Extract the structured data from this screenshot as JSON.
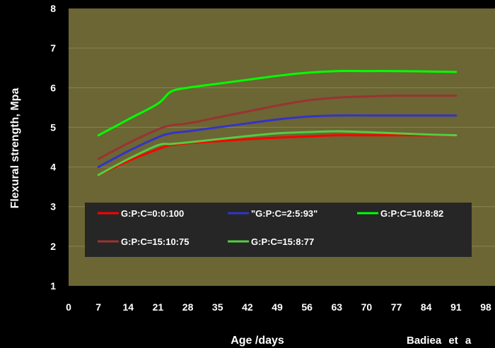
{
  "chart_data": {
    "type": "line",
    "title": "",
    "xlabel": "Age /days",
    "ylabel": "Flexural strength,  Mpa",
    "xlim": [
      0,
      98
    ],
    "ylim": [
      1,
      8
    ],
    "x_ticks": [
      "0",
      "7",
      "14",
      "21",
      "28",
      "35",
      "42",
      "49",
      "56",
      "63",
      "70",
      "77",
      "84",
      "91",
      "98"
    ],
    "y_ticks": [
      "1",
      "2",
      "3",
      "4",
      "5",
      "6",
      "7",
      "8"
    ],
    "grid": "horizontal",
    "legend_position": "bottom-inside",
    "plot_background": "#6b6633",
    "series": [
      {
        "name": "G:P:C=0:0:100",
        "color": "#ff0000",
        "x": [
          7,
          14,
          21,
          24,
          28,
          35,
          42,
          49,
          56,
          63,
          70,
          77,
          84,
          91
        ],
        "y": [
          3.8,
          4.15,
          4.45,
          4.55,
          4.6,
          4.65,
          4.7,
          4.74,
          4.77,
          4.8,
          4.8,
          4.8,
          4.8,
          4.8
        ]
      },
      {
        "name": "\"G:P:C=2:5:93\"",
        "color": "#3333cc",
        "x": [
          7,
          14,
          21,
          24,
          28,
          35,
          42,
          49,
          56,
          63,
          70,
          77,
          84,
          91
        ],
        "y": [
          4.0,
          4.4,
          4.75,
          4.85,
          4.9,
          5.0,
          5.1,
          5.2,
          5.27,
          5.3,
          5.3,
          5.3,
          5.3,
          5.3
        ]
      },
      {
        "name": "G:P:C=10:8:82",
        "color": "#00ff00",
        "x": [
          7,
          14,
          21,
          24,
          28,
          35,
          42,
          49,
          56,
          63,
          70,
          77,
          84,
          91
        ],
        "y": [
          4.8,
          5.2,
          5.6,
          5.9,
          6.0,
          6.1,
          6.2,
          6.3,
          6.38,
          6.42,
          6.42,
          6.42,
          6.41,
          6.4
        ]
      },
      {
        "name": "G:P:C=15:10:75",
        "color": "#993333",
        "x": [
          7,
          14,
          21,
          24,
          28,
          35,
          42,
          49,
          56,
          63,
          70,
          77,
          84,
          91
        ],
        "y": [
          4.2,
          4.6,
          4.95,
          5.05,
          5.1,
          5.25,
          5.4,
          5.55,
          5.68,
          5.75,
          5.78,
          5.8,
          5.8,
          5.8
        ]
      },
      {
        "name": "G:P:C=15:8:77",
        "color": "#55cc44",
        "x": [
          7,
          14,
          21,
          24,
          28,
          35,
          42,
          49,
          56,
          63,
          70,
          77,
          84,
          91
        ],
        "y": [
          3.8,
          4.2,
          4.55,
          4.58,
          4.62,
          4.7,
          4.78,
          4.85,
          4.88,
          4.9,
          4.88,
          4.85,
          4.82,
          4.8
        ]
      }
    ]
  },
  "credit_text": "Badiea  et  a"
}
